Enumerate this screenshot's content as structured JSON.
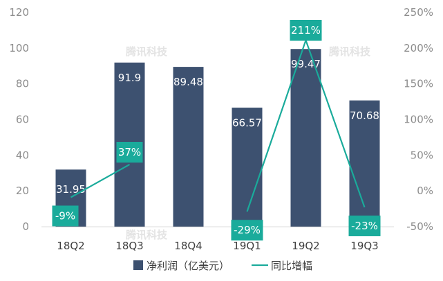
{
  "chart_data": {
    "type": "bar",
    "categories": [
      "18Q2",
      "18Q3",
      "18Q4",
      "19Q1",
      "19Q2",
      "19Q3"
    ],
    "series": [
      {
        "name": "净利润（亿美元）",
        "type": "bar",
        "axis": "left",
        "values": [
          31.95,
          91.9,
          89.48,
          66.57,
          99.47,
          70.68
        ],
        "labels": [
          "31.95",
          "91.9",
          "89.48",
          "66.57",
          "99.47",
          "70.68"
        ],
        "color": "#3d5170"
      },
      {
        "name": "同比增幅",
        "type": "line",
        "axis": "right",
        "values": [
          -9,
          37,
          null,
          -29,
          211,
          -23
        ],
        "labels": [
          "-9%",
          "37%",
          "",
          "-29%",
          "211%",
          "-23%"
        ],
        "color": "#1aab9b"
      }
    ],
    "y_left": {
      "lim": [
        0,
        120
      ],
      "ticks": [
        "0",
        "20",
        "40",
        "60",
        "80",
        "100",
        "120"
      ]
    },
    "y_right": {
      "lim": [
        -50,
        250
      ],
      "ticks": [
        "-50%",
        "0%",
        "50%",
        "100%",
        "150%",
        "200%",
        "250%"
      ]
    },
    "watermark": "腾讯科技",
    "legend_position": "bottom",
    "grid": false
  }
}
